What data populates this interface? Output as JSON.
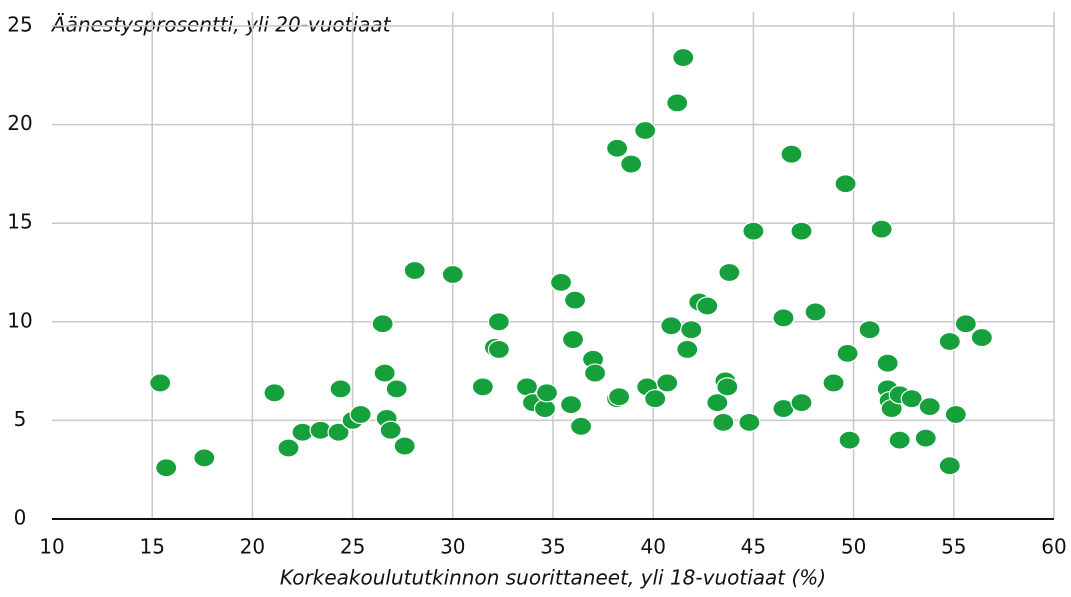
{
  "chart_data": {
    "type": "scatter",
    "y_label": "Äänestysprosentti, yli 20-vuotiaat",
    "x_label": "Korkeakoulututkinnon suorittaneet, yli 18-vuotiaat (%)",
    "color": "#16a03c",
    "x": [
      15.4,
      15.7,
      17.6,
      21.1,
      21.8,
      22.5,
      23.4,
      24.3,
      24.4,
      25.0,
      25.4,
      26.5,
      26.6,
      26.7,
      26.9,
      27.2,
      27.6,
      28.1,
      30.0,
      31.5,
      32.1,
      32.3,
      32.3,
      33.7,
      34.0,
      34.6,
      34.7,
      35.4,
      35.9,
      36.0,
      36.1,
      36.4,
      37.0,
      37.1,
      38.2,
      38.2,
      38.3,
      38.9,
      39.6,
      39.7,
      40.1,
      40.7,
      40.9,
      41.2,
      41.5,
      41.7,
      41.9,
      42.3,
      42.7,
      43.2,
      43.5,
      43.6,
      43.7,
      43.8,
      44.8,
      45.0,
      46.5,
      46.5,
      46.9,
      47.4,
      47.4,
      48.1,
      49.0,
      49.6,
      49.7,
      49.8,
      50.8,
      51.4,
      51.7,
      51.7,
      51.8,
      51.9,
      52.3,
      52.3,
      52.9,
      53.6,
      53.8,
      54.8,
      54.8,
      55.1,
      55.6,
      56.4
    ],
    "values": [
      6.9,
      2.6,
      3.1,
      6.4,
      3.6,
      4.4,
      4.5,
      4.4,
      6.6,
      5.0,
      5.3,
      9.9,
      7.4,
      5.1,
      4.5,
      6.6,
      3.7,
      12.6,
      12.4,
      6.7,
      8.7,
      10.0,
      8.6,
      6.7,
      5.9,
      5.6,
      6.4,
      12.0,
      5.8,
      9.1,
      11.1,
      4.7,
      8.1,
      7.4,
      18.8,
      6.1,
      6.2,
      18.0,
      19.7,
      6.7,
      6.1,
      6.9,
      9.8,
      21.1,
      23.4,
      8.6,
      9.6,
      11.0,
      10.8,
      5.9,
      4.9,
      7.0,
      6.7,
      12.5,
      4.9,
      14.6,
      5.6,
      10.2,
      18.5,
      5.9,
      14.6,
      10.5,
      6.9,
      17.0,
      8.4,
      4.0,
      9.6,
      14.7,
      7.9,
      6.6,
      6.0,
      5.6,
      6.3,
      4.0,
      6.1,
      4.1,
      5.7,
      2.7,
      9.0,
      5.3,
      9.9,
      9.2
    ],
    "xlim": [
      10,
      60
    ],
    "xticks": [
      10,
      15,
      20,
      25,
      30,
      35,
      40,
      45,
      50,
      55,
      60
    ],
    "ylim": [
      0,
      25
    ],
    "yticks": [
      0,
      5,
      10,
      15,
      20,
      25
    ],
    "grid": true
  }
}
